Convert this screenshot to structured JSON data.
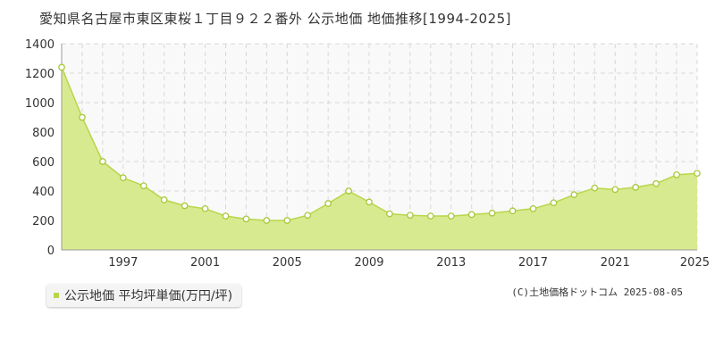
{
  "title": "愛知県名古屋市東区東桜１丁目９２２番外 公示地価 地価推移[1994-2025]",
  "legend": {
    "label": "公示地価 平均坪単価(万円/坪)"
  },
  "credit": "(C)土地価格ドットコム 2025-08-05",
  "colors": {
    "fill": "#d8ea8f",
    "line": "#b8d64a",
    "marker_stroke": "#a8c83a",
    "grid": "#d8d8d8",
    "plot_bg": "#f9f9f9",
    "legend_swatch": "#b8d64a"
  },
  "chart_data": {
    "type": "area",
    "title": "愛知県名古屋市東区東桜１丁目９２２番外 公示地価 地価推移[1994-2025]",
    "xlabel": "",
    "ylabel": "",
    "xlim": [
      1994,
      2025
    ],
    "ylim": [
      0,
      1400
    ],
    "yticks": [
      0,
      200,
      400,
      600,
      800,
      1000,
      1200,
      1400
    ],
    "xticks": [
      1997,
      2001,
      2005,
      2009,
      2013,
      2017,
      2021,
      2025
    ],
    "grid": true,
    "legend_position": "bottom-left",
    "series": [
      {
        "name": "公示地価 平均坪単価(万円/坪)",
        "x": [
          1994,
          1995,
          1996,
          1997,
          1998,
          1999,
          2000,
          2001,
          2002,
          2003,
          2004,
          2005,
          2006,
          2007,
          2008,
          2009,
          2010,
          2011,
          2012,
          2013,
          2014,
          2015,
          2016,
          2017,
          2018,
          2019,
          2020,
          2021,
          2022,
          2023,
          2024,
          2025
        ],
        "values": [
          1240,
          900,
          600,
          490,
          435,
          340,
          300,
          280,
          230,
          210,
          200,
          200,
          235,
          315,
          400,
          325,
          245,
          235,
          230,
          230,
          240,
          250,
          265,
          280,
          320,
          375,
          420,
          410,
          425,
          450,
          510,
          520
        ]
      }
    ]
  }
}
